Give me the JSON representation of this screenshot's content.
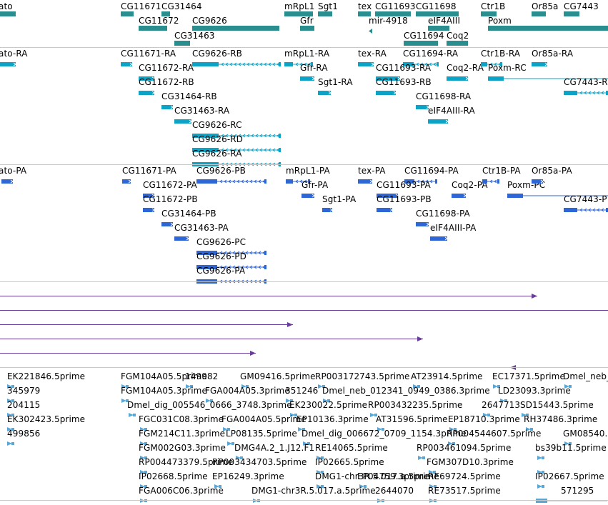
{
  "colors": {
    "gene": "#2b8e8e",
    "rna": "#0da3c6",
    "protein": "#2f66d6",
    "purple_line": "#6a3d9a",
    "est": "#5aa7d6",
    "separator": "#c9c9c9"
  },
  "tracks": {
    "gene": {
      "features": [
        {
          "label": "ato"
        },
        {
          "label": "CG11671"
        },
        {
          "label": "CG31464"
        },
        {
          "label": "CG11672"
        },
        {
          "label": "CG9626"
        },
        {
          "label": "CG31463"
        },
        {
          "label": "mRpL1"
        },
        {
          "label": "Sgt1"
        },
        {
          "label": "Gfr"
        },
        {
          "label": "tex"
        },
        {
          "label": "CG11693"
        },
        {
          "label": "CG11698"
        },
        {
          "label": "mir-4918"
        },
        {
          "label": "eIF4AIII"
        },
        {
          "label": "CG11694"
        },
        {
          "label": "Coq2"
        },
        {
          "label": "Ctr1B"
        },
        {
          "label": "Poxm"
        },
        {
          "label": "Or85a"
        },
        {
          "label": "CG7443"
        }
      ]
    },
    "transcripts": {
      "features": [
        {
          "label": "ato-RA"
        },
        {
          "label": "CG11671-RA"
        },
        {
          "label": "CG9626-RB"
        },
        {
          "label": "CG11672-RA"
        },
        {
          "label": "CG11672-RB"
        },
        {
          "label": "CG31464-RB"
        },
        {
          "label": "CG31463-RA"
        },
        {
          "label": "CG9626-RC"
        },
        {
          "label": "CG9626-RD"
        },
        {
          "label": "CG9626-RA"
        },
        {
          "label": "mRpL1-RA"
        },
        {
          "label": "Gfr-RA"
        },
        {
          "label": "Sgt1-RA"
        },
        {
          "label": "tex-RA"
        },
        {
          "label": "CG11694-RA"
        },
        {
          "label": "CG11693-RA"
        },
        {
          "label": "CG11693-RB"
        },
        {
          "label": "CG11698-RA"
        },
        {
          "label": "eIF4AIII-RA"
        },
        {
          "label": "Coq2-RA"
        },
        {
          "label": "Ctr1B-RA"
        },
        {
          "label": "Poxm-RC"
        },
        {
          "label": "Or85a-RA"
        },
        {
          "label": "CG7443-R"
        }
      ]
    },
    "proteins": {
      "features": [
        {
          "label": "ato-PA"
        },
        {
          "label": "CG11671-PA"
        },
        {
          "label": "CG9626-PB"
        },
        {
          "label": "CG11672-PA"
        },
        {
          "label": "CG11672-PB"
        },
        {
          "label": "CG31464-PB"
        },
        {
          "label": "CG31463-PA"
        },
        {
          "label": "CG9626-PC"
        },
        {
          "label": "CG9626-PD"
        },
        {
          "label": "CG9626-PA"
        },
        {
          "label": "mRpL1-PA"
        },
        {
          "label": "Gfr-PA"
        },
        {
          "label": "Sgt1-PA"
        },
        {
          "label": "tex-PA"
        },
        {
          "label": "CG11694-PA"
        },
        {
          "label": "CG11693-PA"
        },
        {
          "label": "CG11693-PB"
        },
        {
          "label": "CG11698-PA"
        },
        {
          "label": "eIF4AIII-PA"
        },
        {
          "label": "Coq2-PA"
        },
        {
          "label": "Ctr1B-PA"
        },
        {
          "label": "Poxm-PC"
        },
        {
          "label": "Or85a-PA"
        },
        {
          "label": "CG7443-P"
        }
      ]
    },
    "est": {
      "features": [
        {
          "label": "EK221846.5prime"
        },
        {
          "label": "345979"
        },
        {
          "label": "204115"
        },
        {
          "label": "EK302423.5prime"
        },
        {
          "label": "499856"
        },
        {
          "label": "FGM104A05.5prime"
        },
        {
          "label": "149982"
        },
        {
          "label": "GM09416.5prime"
        },
        {
          "label": "RP003172743.5prime"
        },
        {
          "label": "AT23914.5prime"
        },
        {
          "label": "EC17371.5prime"
        },
        {
          "label": "Dmel_neb_"
        },
        {
          "label": "FGM104A05.3prime"
        },
        {
          "label": "FGA004A05.3prime"
        },
        {
          "label": "351246"
        },
        {
          "label": "Dmel_neb_012341_0949_0386.3prime"
        },
        {
          "label": "LD23093.3prime"
        },
        {
          "label": "Dmel_dig_005546_0666_3748.3prime"
        },
        {
          "label": "EK230022.5prime"
        },
        {
          "label": "RP003432235.5prime"
        },
        {
          "label": "2647713"
        },
        {
          "label": "SD15443.5prime"
        },
        {
          "label": "FGC031C08.3prime"
        },
        {
          "label": "FGA004A05.5prime"
        },
        {
          "label": "EP10136.3prime"
        },
        {
          "label": "AT31596.5prime"
        },
        {
          "label": "EP18710.3prime"
        },
        {
          "label": "RH37486.3prime"
        },
        {
          "label": "FGM214C11.3prime"
        },
        {
          "label": "LP08135.5prime"
        },
        {
          "label": "Dmel_dig_006672_0709_1154.3prime"
        },
        {
          "label": "RP004544607.5prime"
        },
        {
          "label": "GM08540."
        },
        {
          "label": "FGM002G03.3prime"
        },
        {
          "label": "DMG4A.2_1.J12.F1"
        },
        {
          "label": "RE14065.5prime"
        },
        {
          "label": "RP003461094.5prime"
        },
        {
          "label": "bs39b11.5prime"
        },
        {
          "label": "RP004473379.5prime"
        },
        {
          "label": "IP02665.5prime"
        },
        {
          "label": "FGM307D10.3prime"
        },
        {
          "label": "RP003434703.5prime"
        },
        {
          "label": "IP02668.5prime"
        },
        {
          "label": "EP16249.3prime"
        },
        {
          "label": "DMG1-chr3R.5.017.a.5prime"
        },
        {
          "label": "EP04759.3prime"
        },
        {
          "label": "RE69724.5prime"
        },
        {
          "label": "IP02667.5prime"
        },
        {
          "label": "FGA006C06.3prime"
        },
        {
          "label": "DMG1-chr3R.5.017.a.5prime"
        },
        {
          "label": "2644070"
        },
        {
          "label": "RE73517.5prime"
        },
        {
          "label": "571295"
        }
      ]
    }
  }
}
